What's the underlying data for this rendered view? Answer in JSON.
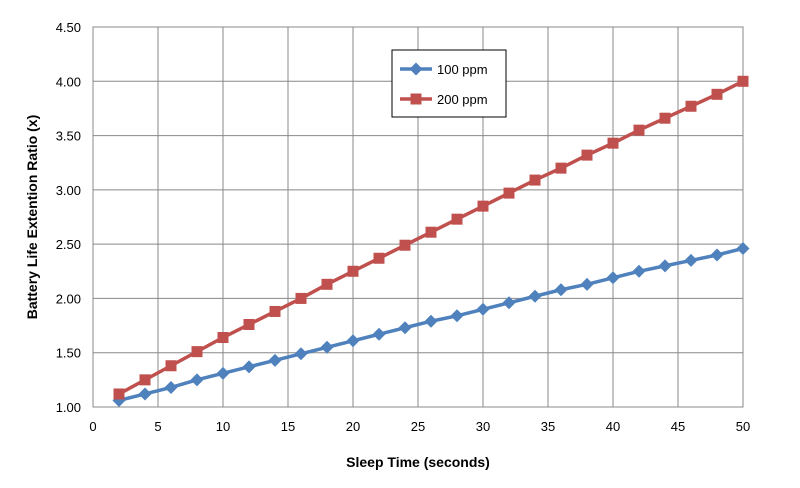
{
  "chart_data": {
    "type": "line",
    "xlabel": "Sleep Time (seconds)",
    "ylabel": "Battery Life Extention Ratio  (x)",
    "xlim": [
      0,
      50
    ],
    "ylim": [
      1.0,
      4.5
    ],
    "x_ticks": [
      "0",
      "5",
      "10",
      "15",
      "20",
      "25",
      "30",
      "35",
      "40",
      "45",
      "50"
    ],
    "y_ticks": [
      "1.00",
      "1.50",
      "2.00",
      "2.50",
      "3.00",
      "3.50",
      "4.00",
      "4.50"
    ],
    "grid": true,
    "legend_position": "top-center",
    "series": [
      {
        "name": "100 ppm",
        "color": "#4F81BD",
        "marker": "diamond",
        "x": [
          2,
          4,
          6,
          8,
          10,
          12,
          14,
          16,
          18,
          20,
          22,
          24,
          26,
          28,
          30,
          32,
          34,
          36,
          38,
          40,
          42,
          44,
          46,
          48,
          50
        ],
        "y": [
          1.06,
          1.12,
          1.18,
          1.25,
          1.31,
          1.37,
          1.43,
          1.49,
          1.55,
          1.61,
          1.67,
          1.73,
          1.79,
          1.84,
          1.9,
          1.96,
          2.02,
          2.08,
          2.13,
          2.19,
          2.25,
          2.3,
          2.35,
          2.4,
          2.46
        ]
      },
      {
        "name": "200 ppm",
        "color": "#C0504D",
        "marker": "square",
        "x": [
          2,
          4,
          6,
          8,
          10,
          12,
          14,
          16,
          18,
          20,
          22,
          24,
          26,
          28,
          30,
          32,
          34,
          36,
          38,
          40,
          42,
          44,
          46,
          48,
          50
        ],
        "y": [
          1.12,
          1.25,
          1.38,
          1.51,
          1.64,
          1.76,
          1.88,
          2.0,
          2.13,
          2.25,
          2.37,
          2.49,
          2.61,
          2.73,
          2.85,
          2.97,
          3.09,
          3.2,
          3.32,
          3.43,
          3.55,
          3.66,
          3.77,
          3.88,
          4.0
        ]
      }
    ]
  }
}
